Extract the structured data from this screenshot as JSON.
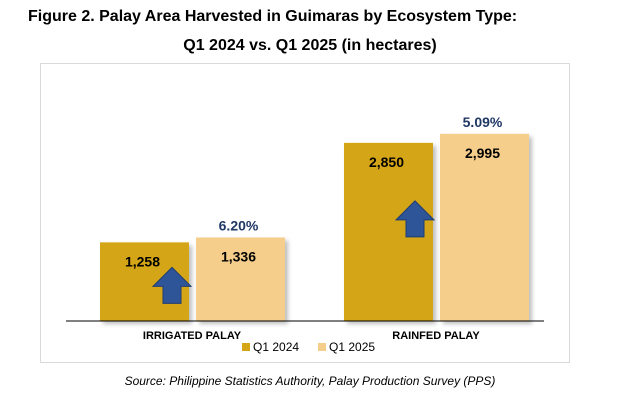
{
  "title_line1": "Figure 2. Palay Area Harvested in Guimaras by Ecosystem Type:",
  "title_line2": "Q1 2024 vs. Q1 2025 (in hectares)",
  "source": "Source: Philippine Statistics Authority, Palay Production Survey (PPS)",
  "colors": {
    "q1_2024": "#D4A514",
    "q1_2025": "#F5CE8C",
    "arrow": "#2E5597",
    "pct_text": "#1F3864"
  },
  "chart_data": {
    "type": "bar",
    "categories": [
      "IRRIGATED PALAY",
      "RAINFED PALAY"
    ],
    "series": [
      {
        "name": "Q1 2024",
        "values": [
          1258,
          2850
        ],
        "labels": [
          "1,258",
          "2,850"
        ]
      },
      {
        "name": "Q1 2025",
        "values": [
          1336,
          2995
        ],
        "labels": [
          "1,336",
          "2,995"
        ]
      }
    ],
    "growth_labels": [
      "6.20%",
      "5.09%"
    ],
    "growth_icon": "up-arrow-icon",
    "legend_position": "bottom",
    "grid": false,
    "ylim": [
      0,
      3200
    ]
  }
}
